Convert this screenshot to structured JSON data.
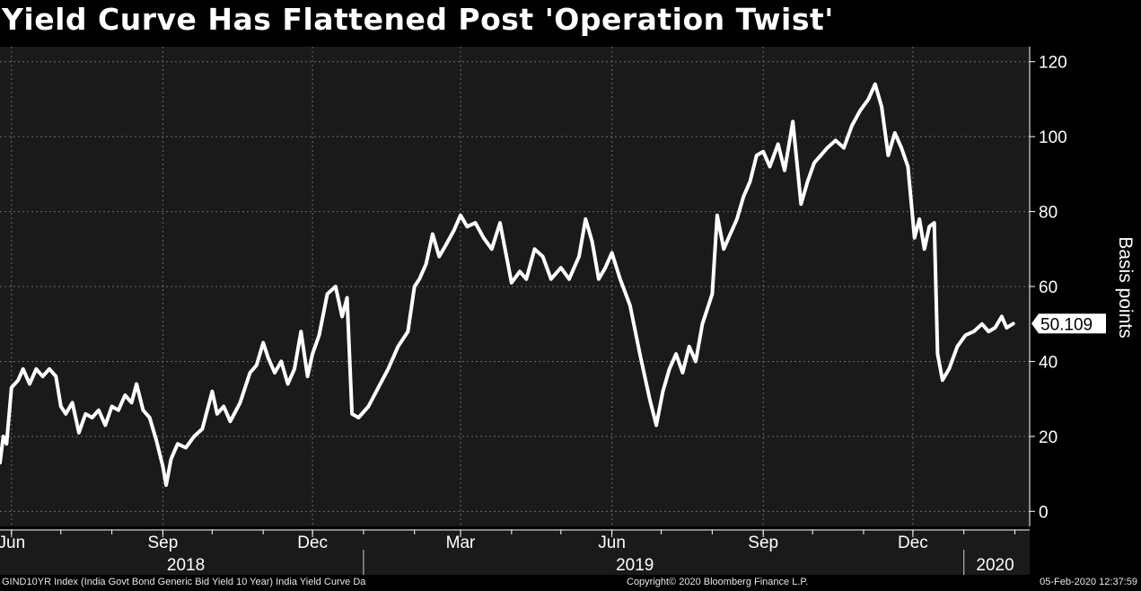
{
  "title": "Yield Curve Has Flattened Post 'Operation Twist'",
  "footer": {
    "source": "GIND10YR Index (India Govt Bond Generic Bid Yield 10 Year) India Yield Curve  Da",
    "copyright": "Copyright© 2020 Bloomberg Finance L.P.",
    "timestamp": "05-Feb-2020 12:37:59"
  },
  "colors": {
    "background": "#000000",
    "plot_background": "#1a1a1a",
    "line": "#ffffff",
    "grid": "#6a6a6a"
  },
  "chart_data": {
    "type": "line",
    "title": "Yield Curve Has Flattened Post 'Operation Twist'",
    "ylabel": "Basis points",
    "xlabel": "",
    "ylim": [
      -4,
      124
    ],
    "yticks": [
      0,
      20,
      40,
      60,
      80,
      100,
      120
    ],
    "xlim": [
      "2018-05-25",
      "2020-02-10"
    ],
    "xticks": [
      {
        "label": "Jun",
        "date": "2018-06-01"
      },
      {
        "label": "Sep",
        "date": "2018-09-01"
      },
      {
        "label": "Dec",
        "date": "2018-12-01"
      },
      {
        "label": "Mar",
        "date": "2019-03-01"
      },
      {
        "label": "Jun",
        "date": "2019-06-01"
      },
      {
        "label": "Sep",
        "date": "2019-09-01"
      },
      {
        "label": "Dec",
        "date": "2019-12-01"
      }
    ],
    "years": [
      {
        "label": "2018",
        "date": "2018-09-15"
      },
      {
        "label": "2019",
        "date": "2019-06-15"
      },
      {
        "label": "2020",
        "date": "2020-01-20"
      }
    ],
    "year_separators": [
      "2019-01-01",
      "2020-01-01"
    ],
    "grid": true,
    "last_value_label": "50.109",
    "series": [
      {
        "values": [
          [
            "2018-05-25",
            13
          ],
          [
            "2018-05-27",
            20
          ],
          [
            "2018-05-29",
            18
          ],
          [
            "2018-06-01",
            33
          ],
          [
            "2018-06-05",
            35
          ],
          [
            "2018-06-08",
            38
          ],
          [
            "2018-06-12",
            34
          ],
          [
            "2018-06-16",
            38
          ],
          [
            "2018-06-20",
            36
          ],
          [
            "2018-06-24",
            38
          ],
          [
            "2018-06-28",
            36
          ],
          [
            "2018-07-01",
            28
          ],
          [
            "2018-07-04",
            26
          ],
          [
            "2018-07-08",
            29
          ],
          [
            "2018-07-12",
            21
          ],
          [
            "2018-07-16",
            26
          ],
          [
            "2018-07-20",
            25
          ],
          [
            "2018-07-24",
            27
          ],
          [
            "2018-07-28",
            23
          ],
          [
            "2018-08-01",
            28
          ],
          [
            "2018-08-05",
            27
          ],
          [
            "2018-08-09",
            31
          ],
          [
            "2018-08-13",
            29
          ],
          [
            "2018-08-16",
            34
          ],
          [
            "2018-08-20",
            27
          ],
          [
            "2018-08-24",
            25
          ],
          [
            "2018-08-28",
            19
          ],
          [
            "2018-09-01",
            12
          ],
          [
            "2018-09-03",
            7
          ],
          [
            "2018-09-06",
            14
          ],
          [
            "2018-09-10",
            18
          ],
          [
            "2018-09-15",
            17
          ],
          [
            "2018-09-20",
            20
          ],
          [
            "2018-09-25",
            22
          ],
          [
            "2018-10-01",
            32
          ],
          [
            "2018-10-04",
            26
          ],
          [
            "2018-10-08",
            28
          ],
          [
            "2018-10-12",
            24
          ],
          [
            "2018-10-18",
            29
          ],
          [
            "2018-10-24",
            37
          ],
          [
            "2018-10-28",
            39
          ],
          [
            "2018-11-01",
            45
          ],
          [
            "2018-11-04",
            41
          ],
          [
            "2018-11-08",
            37
          ],
          [
            "2018-11-12",
            40
          ],
          [
            "2018-11-16",
            34
          ],
          [
            "2018-11-20",
            38
          ],
          [
            "2018-11-24",
            48
          ],
          [
            "2018-11-28",
            36
          ],
          [
            "2018-12-01",
            42
          ],
          [
            "2018-12-05",
            47
          ],
          [
            "2018-12-10",
            58
          ],
          [
            "2018-12-15",
            60
          ],
          [
            "2018-12-19",
            52
          ],
          [
            "2018-12-22",
            57
          ],
          [
            "2018-12-25",
            26
          ],
          [
            "2018-12-29",
            25
          ],
          [
            "2019-01-04",
            28
          ],
          [
            "2019-01-10",
            33
          ],
          [
            "2019-01-16",
            38
          ],
          [
            "2019-01-22",
            44
          ],
          [
            "2019-01-28",
            48
          ],
          [
            "2019-02-01",
            60
          ],
          [
            "2019-02-04",
            62
          ],
          [
            "2019-02-08",
            66
          ],
          [
            "2019-02-12",
            74
          ],
          [
            "2019-02-16",
            68
          ],
          [
            "2019-02-20",
            71
          ],
          [
            "2019-02-25",
            75
          ],
          [
            "2019-03-01",
            79
          ],
          [
            "2019-03-05",
            76
          ],
          [
            "2019-03-10",
            77
          ],
          [
            "2019-03-15",
            73
          ],
          [
            "2019-03-20",
            70
          ],
          [
            "2019-03-25",
            77
          ],
          [
            "2019-04-01",
            61
          ],
          [
            "2019-04-06",
            64
          ],
          [
            "2019-04-10",
            62
          ],
          [
            "2019-04-15",
            70
          ],
          [
            "2019-04-20",
            68
          ],
          [
            "2019-04-25",
            62
          ],
          [
            "2019-05-01",
            65
          ],
          [
            "2019-05-06",
            62
          ],
          [
            "2019-05-12",
            68
          ],
          [
            "2019-05-16",
            78
          ],
          [
            "2019-05-20",
            72
          ],
          [
            "2019-05-24",
            62
          ],
          [
            "2019-05-28",
            65
          ],
          [
            "2019-06-01",
            69
          ],
          [
            "2019-06-06",
            62
          ],
          [
            "2019-06-12",
            55
          ],
          [
            "2019-06-18",
            42
          ],
          [
            "2019-06-24",
            30
          ],
          [
            "2019-06-28",
            23
          ],
          [
            "2019-07-02",
            32
          ],
          [
            "2019-07-06",
            38
          ],
          [
            "2019-07-10",
            42
          ],
          [
            "2019-07-14",
            37
          ],
          [
            "2019-07-18",
            44
          ],
          [
            "2019-07-22",
            40
          ],
          [
            "2019-07-26",
            50
          ],
          [
            "2019-08-01",
            58
          ],
          [
            "2019-08-04",
            79
          ],
          [
            "2019-08-08",
            70
          ],
          [
            "2019-08-12",
            74
          ],
          [
            "2019-08-16",
            78
          ],
          [
            "2019-08-20",
            84
          ],
          [
            "2019-08-24",
            88
          ],
          [
            "2019-08-28",
            95
          ],
          [
            "2019-09-01",
            96
          ],
          [
            "2019-09-05",
            92
          ],
          [
            "2019-09-10",
            98
          ],
          [
            "2019-09-14",
            91
          ],
          [
            "2019-09-19",
            104
          ],
          [
            "2019-09-24",
            82
          ],
          [
            "2019-09-28",
            88
          ],
          [
            "2019-10-02",
            93
          ],
          [
            "2019-10-06",
            95
          ],
          [
            "2019-10-10",
            97
          ],
          [
            "2019-10-15",
            99
          ],
          [
            "2019-10-20",
            97
          ],
          [
            "2019-10-25",
            103
          ],
          [
            "2019-10-30",
            107
          ],
          [
            "2019-11-04",
            110
          ],
          [
            "2019-11-08",
            114
          ],
          [
            "2019-11-12",
            108
          ],
          [
            "2019-11-16",
            95
          ],
          [
            "2019-11-20",
            101
          ],
          [
            "2019-11-24",
            97
          ],
          [
            "2019-11-28",
            92
          ],
          [
            "2019-12-02",
            73
          ],
          [
            "2019-12-05",
            78
          ],
          [
            "2019-12-08",
            70
          ],
          [
            "2019-12-11",
            76
          ],
          [
            "2019-12-14",
            77
          ],
          [
            "2019-12-16",
            42
          ],
          [
            "2019-12-19",
            35
          ],
          [
            "2019-12-23",
            38
          ],
          [
            "2019-12-28",
            44
          ],
          [
            "2020-01-02",
            47
          ],
          [
            "2020-01-07",
            48
          ],
          [
            "2020-01-12",
            50
          ],
          [
            "2020-01-16",
            48
          ],
          [
            "2020-01-20",
            49
          ],
          [
            "2020-01-24",
            52
          ],
          [
            "2020-01-27",
            49
          ],
          [
            "2020-01-31",
            50.109
          ]
        ]
      }
    ]
  }
}
